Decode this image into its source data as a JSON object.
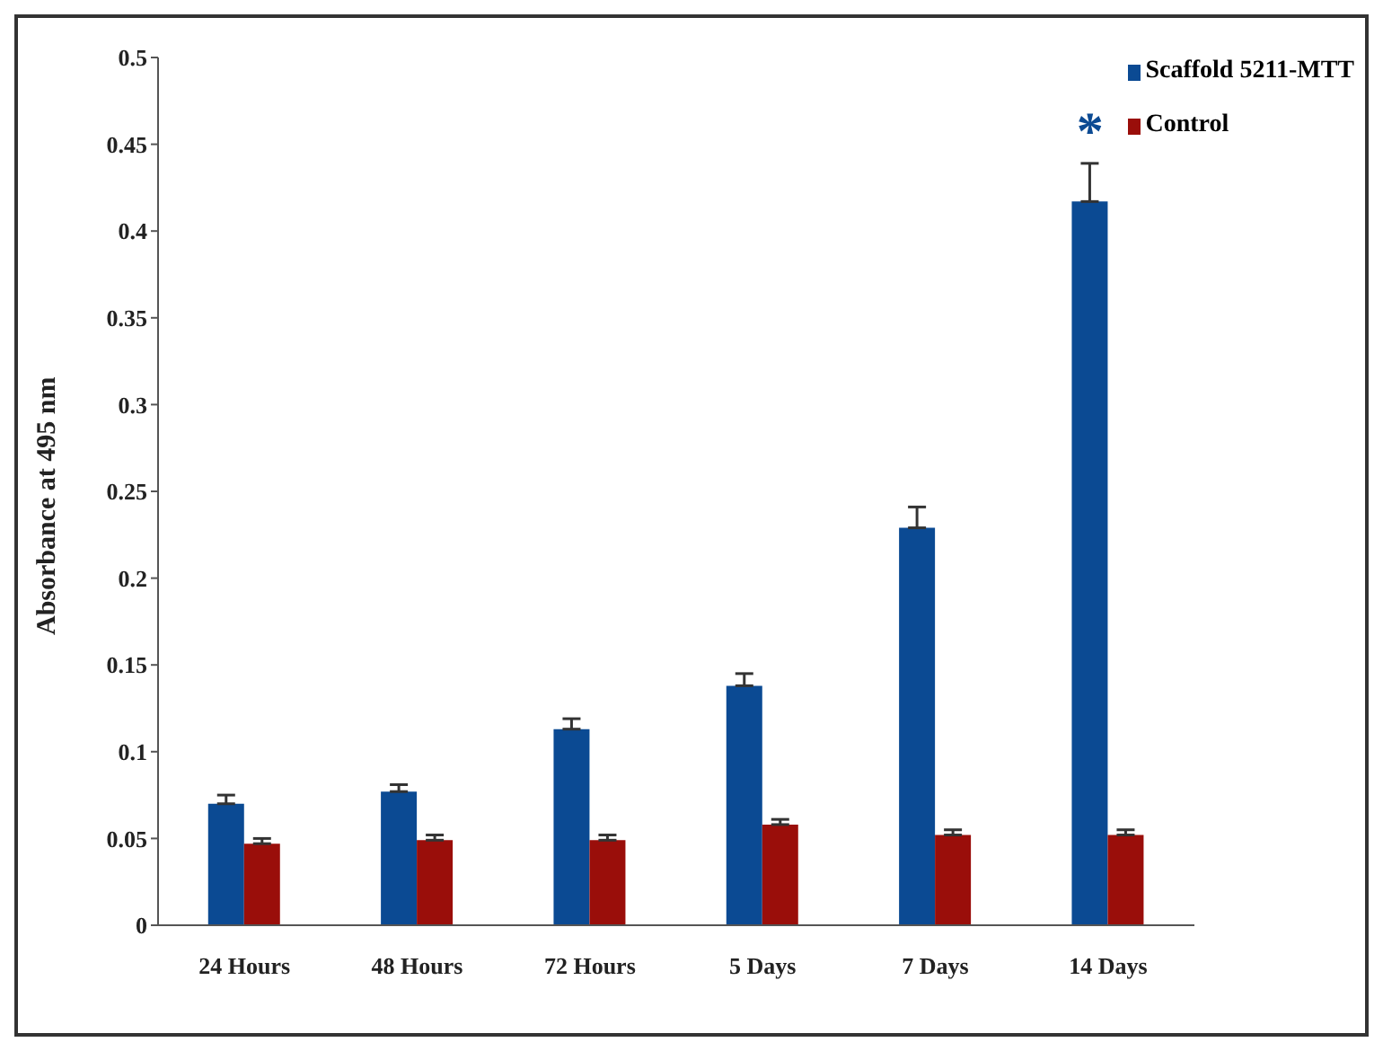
{
  "chart_data": {
    "type": "bar",
    "ylabel": "Absorbance at 495 nm",
    "categories": [
      "24 Hours",
      "48 Hours",
      "72 Hours",
      "5 Days",
      "7 Days",
      "14 Days"
    ],
    "series": [
      {
        "name": "Scaffold 5211-MTT",
        "color": "#0b4a93",
        "values": [
          0.07,
          0.077,
          0.113,
          0.138,
          0.229,
          0.417
        ],
        "errors": [
          0.005,
          0.004,
          0.006,
          0.007,
          0.012,
          0.022
        ]
      },
      {
        "name": "Control",
        "color": "#9a0e0a",
        "values": [
          0.047,
          0.049,
          0.049,
          0.058,
          0.052,
          0.052
        ],
        "errors": [
          0.003,
          0.003,
          0.003,
          0.003,
          0.003,
          0.003
        ]
      }
    ],
    "ylim": [
      0,
      0.5
    ],
    "yticks": [
      0,
      0.05,
      0.1,
      0.15,
      0.2,
      0.25,
      0.3,
      0.35,
      0.4,
      0.45,
      0.5
    ],
    "annotations": [
      {
        "text": "*",
        "x": "14 Days",
        "y": 0.417
      }
    ],
    "grid": false,
    "legend": "top right"
  }
}
